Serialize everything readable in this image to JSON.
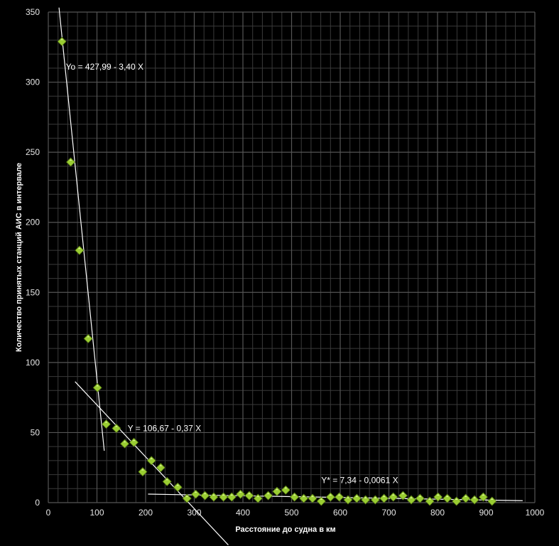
{
  "chart_data": {
    "type": "scatter",
    "xlabel": "Расстояние  до судна  в км",
    "ylabel": "Количество  принятых  станций  АИС  в  интервале",
    "xlim": [
      0,
      1000
    ],
    "ylim": [
      0,
      350
    ],
    "x_ticks": [
      "0",
      "100",
      "200",
      "300",
      "400",
      "500",
      "600",
      "700",
      "800",
      "900",
      "1000"
    ],
    "y_ticks": [
      "0",
      "50",
      "100",
      "150",
      "200",
      "250",
      "300",
      "350"
    ],
    "grid": true,
    "marker_color": "#9acd32",
    "background": "#000000",
    "grid_color": "#555555",
    "points": [
      {
        "x": 28,
        "y": 329
      },
      {
        "x": 46,
        "y": 243
      },
      {
        "x": 64,
        "y": 180
      },
      {
        "x": 82,
        "y": 117
      },
      {
        "x": 101,
        "y": 82
      },
      {
        "x": 119,
        "y": 56
      },
      {
        "x": 140,
        "y": 53
      },
      {
        "x": 157,
        "y": 42
      },
      {
        "x": 176,
        "y": 43
      },
      {
        "x": 194,
        "y": 22
      },
      {
        "x": 212,
        "y": 30
      },
      {
        "x": 231,
        "y": 25
      },
      {
        "x": 244,
        "y": 15
      },
      {
        "x": 266,
        "y": 11
      },
      {
        "x": 285,
        "y": 3
      },
      {
        "x": 303,
        "y": 6
      },
      {
        "x": 322,
        "y": 5
      },
      {
        "x": 340,
        "y": 4
      },
      {
        "x": 360,
        "y": 4
      },
      {
        "x": 377,
        "y": 4
      },
      {
        "x": 395,
        "y": 6
      },
      {
        "x": 413,
        "y": 5
      },
      {
        "x": 431,
        "y": 3
      },
      {
        "x": 452,
        "y": 5
      },
      {
        "x": 470,
        "y": 8
      },
      {
        "x": 488,
        "y": 9
      },
      {
        "x": 506,
        "y": 4
      },
      {
        "x": 525,
        "y": 3
      },
      {
        "x": 543,
        "y": 3
      },
      {
        "x": 561,
        "y": 1
      },
      {
        "x": 580,
        "y": 4
      },
      {
        "x": 598,
        "y": 4
      },
      {
        "x": 616,
        "y": 2
      },
      {
        "x": 634,
        "y": 3
      },
      {
        "x": 652,
        "y": 2
      },
      {
        "x": 672,
        "y": 2
      },
      {
        "x": 690,
        "y": 3
      },
      {
        "x": 709,
        "y": 4
      },
      {
        "x": 729,
        "y": 5
      },
      {
        "x": 746,
        "y": 2
      },
      {
        "x": 764,
        "y": 3
      },
      {
        "x": 784,
        "y": 1
      },
      {
        "x": 801,
        "y": 4
      },
      {
        "x": 820,
        "y": 3
      },
      {
        "x": 839,
        "y": 1
      },
      {
        "x": 858,
        "y": 3
      },
      {
        "x": 876,
        "y": 2
      },
      {
        "x": 894,
        "y": 4
      },
      {
        "x": 912,
        "y": 1
      }
    ],
    "trendlines": [
      {
        "label": "Yo = 427,99 - 3,40 X",
        "x_start": 22,
        "x_end": 115,
        "intercept": 427.99,
        "slope": -3.4
      },
      {
        "label": "Y = 106,67 - 0,37 X",
        "x_start": 55,
        "x_end": 370,
        "intercept": 106.67,
        "slope": -0.37
      },
      {
        "label": "Y* = 7,34 - 0,0061 X",
        "x_start": 205,
        "x_end": 975,
        "intercept": 7.34,
        "slope": -0.0061
      }
    ]
  }
}
